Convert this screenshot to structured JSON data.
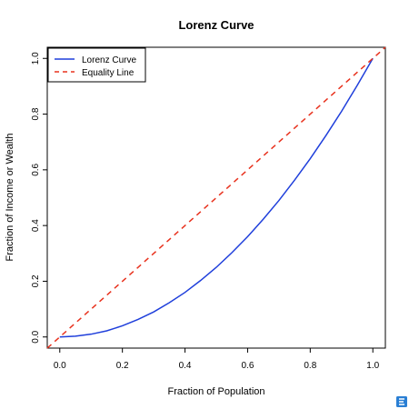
{
  "chart_data": {
    "type": "line",
    "title": "Lorenz Curve",
    "xlabel": "Fraction of Population",
    "ylabel": "Fraction of Income or Wealth",
    "xlim": [
      -0.04,
      1.04
    ],
    "ylim": [
      -0.04,
      1.04
    ],
    "x_ticks": [
      "0.0",
      "0.2",
      "0.4",
      "0.6",
      "0.8",
      "1.0"
    ],
    "y_ticks": [
      "0.0",
      "0.2",
      "0.4",
      "0.6",
      "0.8",
      "1.0"
    ],
    "grid": false,
    "legend_position": "top-left",
    "series": [
      {
        "name": "Lorenz Curve",
        "color": "#1f3fdb",
        "style": "solid",
        "x": [
          0.0,
          0.05,
          0.1,
          0.15,
          0.2,
          0.25,
          0.3,
          0.35,
          0.4,
          0.45,
          0.5,
          0.55,
          0.6,
          0.65,
          0.7,
          0.75,
          0.8,
          0.85,
          0.9,
          0.95,
          1.0
        ],
        "y": [
          0.0,
          0.003,
          0.01,
          0.022,
          0.04,
          0.063,
          0.09,
          0.123,
          0.16,
          0.203,
          0.25,
          0.303,
          0.36,
          0.423,
          0.49,
          0.563,
          0.64,
          0.723,
          0.81,
          0.903,
          1.0
        ]
      },
      {
        "name": "Equality Line",
        "color": "#e8321e",
        "style": "dashed",
        "x": [
          -0.04,
          1.04
        ],
        "y": [
          -0.04,
          1.04
        ]
      }
    ]
  },
  "watermark_icon": "brand-logo-icon"
}
